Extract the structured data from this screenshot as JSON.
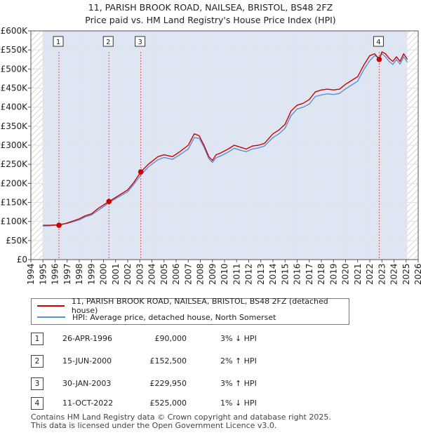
{
  "title_line1": "11, PARISH BROOK ROAD, NAILSEA, BRISTOL, BS48 2FZ",
  "title_line2": "Price paid vs. HM Land Registry's House Price Index (HPI)",
  "colors": {
    "property": "#cc0000",
    "hpi": "#5b8fd4",
    "marker_line": "#e05050",
    "shade": "#dfe6f3",
    "hatch": "#bbbbbb",
    "grid": "#e3e3e3"
  },
  "chart_data": {
    "type": "line",
    "xlim": [
      1994,
      2026
    ],
    "ylim": [
      0,
      600000
    ],
    "yticks": [
      0,
      50000,
      100000,
      150000,
      200000,
      250000,
      300000,
      350000,
      400000,
      450000,
      500000,
      550000,
      600000
    ],
    "ytick_labels": [
      "£0",
      "£50K",
      "£100K",
      "£150K",
      "£200K",
      "£250K",
      "£300K",
      "£350K",
      "£400K",
      "£450K",
      "£500K",
      "£550K",
      "£600K"
    ],
    "xticks": [
      1994,
      1995,
      1996,
      1997,
      1998,
      1999,
      2000,
      2001,
      2002,
      2003,
      2004,
      2005,
      2006,
      2007,
      2008,
      2009,
      2010,
      2011,
      2012,
      2013,
      2014,
      2015,
      2016,
      2017,
      2018,
      2019,
      2020,
      2021,
      2022,
      2023,
      2024,
      2025,
      2026
    ],
    "xtick_labels": [
      "1994",
      "1995",
      "1996",
      "1997",
      "1998",
      "1999",
      "2000",
      "2001",
      "2002",
      "2003",
      "2004",
      "2005",
      "2006",
      "2007",
      "2008",
      "2009",
      "2010",
      "2011",
      "2012",
      "2013",
      "2014",
      "2015",
      "2016",
      "2017",
      "2018",
      "2019",
      "2020",
      "2021",
      "2022",
      "2023",
      "2024",
      "2025",
      "2026"
    ],
    "data_start": 1995.0,
    "data_end": 2025.1,
    "series": [
      {
        "name": "11, PARISH BROOK ROAD, NAILSEA, BRISTOL, BS48 2FZ (detached house)",
        "x": [
          1995.0,
          1995.5,
          1996.0,
          1996.32,
          1997.0,
          1998.0,
          1998.5,
          1999.0,
          1999.6,
          2000.45,
          2001.0,
          2002.0,
          2002.5,
          2003.08,
          2003.7,
          2004.5,
          2005.0,
          2005.7,
          2006.3,
          2007.0,
          2007.5,
          2007.9,
          2008.3,
          2008.7,
          2009.0,
          2009.3,
          2009.7,
          2010.3,
          2010.8,
          2011.3,
          2011.8,
          2012.3,
          2012.8,
          2013.3,
          2014.0,
          2014.5,
          2015.0,
          2015.5,
          2016.0,
          2016.5,
          2017.0,
          2017.5,
          2018.0,
          2018.5,
          2019.0,
          2019.5,
          2020.0,
          2020.5,
          2021.0,
          2021.5,
          2022.0,
          2022.4,
          2022.78,
          2023.0,
          2023.3,
          2023.6,
          2023.9,
          2024.2,
          2024.5,
          2024.8,
          2025.1
        ],
        "values": [
          90000,
          90000,
          91000,
          90000,
          96000,
          107000,
          115000,
          120000,
          135000,
          152500,
          163000,
          183000,
          202000,
          229950,
          250000,
          270000,
          275000,
          270000,
          283000,
          300000,
          330000,
          325000,
          300000,
          270000,
          260000,
          275000,
          280000,
          290000,
          300000,
          295000,
          290000,
          298000,
          300000,
          305000,
          330000,
          340000,
          355000,
          390000,
          405000,
          410000,
          420000,
          440000,
          445000,
          447000,
          445000,
          447000,
          460000,
          470000,
          480000,
          510000,
          535000,
          540000,
          525000,
          545000,
          540000,
          528000,
          520000,
          532000,
          520000,
          540000,
          525000
        ]
      },
      {
        "name": "HPI: Average price, detached house, North Somerset",
        "x": [
          1995.0,
          1995.5,
          1996.0,
          1996.32,
          1997.0,
          1998.0,
          1998.5,
          1999.0,
          1999.6,
          2000.45,
          2001.0,
          2002.0,
          2002.5,
          2003.08,
          2003.7,
          2004.5,
          2005.0,
          2005.7,
          2006.3,
          2007.0,
          2007.5,
          2007.9,
          2008.3,
          2008.7,
          2009.0,
          2009.3,
          2009.7,
          2010.3,
          2010.8,
          2011.3,
          2011.8,
          2012.3,
          2012.8,
          2013.3,
          2014.0,
          2014.5,
          2015.0,
          2015.5,
          2016.0,
          2016.5,
          2017.0,
          2017.5,
          2018.0,
          2018.5,
          2019.0,
          2019.5,
          2020.0,
          2020.5,
          2021.0,
          2021.5,
          2022.0,
          2022.4,
          2022.78,
          2023.0,
          2023.3,
          2023.6,
          2023.9,
          2024.2,
          2024.5,
          2024.8,
          2025.1
        ],
        "values": [
          88000,
          88500,
          90000,
          92500,
          95000,
          104000,
          112000,
          117000,
          130000,
          149000,
          160000,
          178000,
          197000,
          222000,
          243000,
          262000,
          268000,
          263000,
          275000,
          290000,
          320000,
          318000,
          295000,
          265000,
          255000,
          267000,
          272000,
          282000,
          292000,
          287000,
          283000,
          290000,
          293000,
          298000,
          320000,
          330000,
          345000,
          378000,
          395000,
          400000,
          408000,
          428000,
          432000,
          435000,
          433000,
          436000,
          448000,
          458000,
          468000,
          498000,
          522000,
          535000,
          530000,
          540000,
          532000,
          520000,
          512000,
          525000,
          513000,
          532000,
          518000
        ]
      }
    ],
    "transactions": [
      {
        "num": "1",
        "date": "26-APR-1996",
        "x": 1996.32,
        "price": 90000,
        "price_label": "£90,000",
        "hpi": "3% ↓ HPI"
      },
      {
        "num": "2",
        "date": "15-JUN-2000",
        "x": 2000.45,
        "price": 152500,
        "price_label": "£152,500",
        "hpi": "2% ↑ HPI"
      },
      {
        "num": "3",
        "date": "30-JAN-2003",
        "x": 2003.08,
        "price": 229950,
        "price_label": "£229,950",
        "hpi": "3% ↑ HPI"
      },
      {
        "num": "4",
        "date": "11-OCT-2022",
        "x": 2022.78,
        "price": 525000,
        "price_label": "£525,000",
        "hpi": "1% ↓ HPI"
      }
    ]
  },
  "legend": {
    "property_label": "11, PARISH BROOK ROAD, NAILSEA, BRISTOL, BS48 2FZ (detached house)",
    "hpi_label": "HPI: Average price, detached house, North Somerset"
  },
  "footer_line1": "Contains HM Land Registry data © Crown copyright and database right 2025.",
  "footer_line2": "This data is licensed under the Open Government Licence v3.0."
}
